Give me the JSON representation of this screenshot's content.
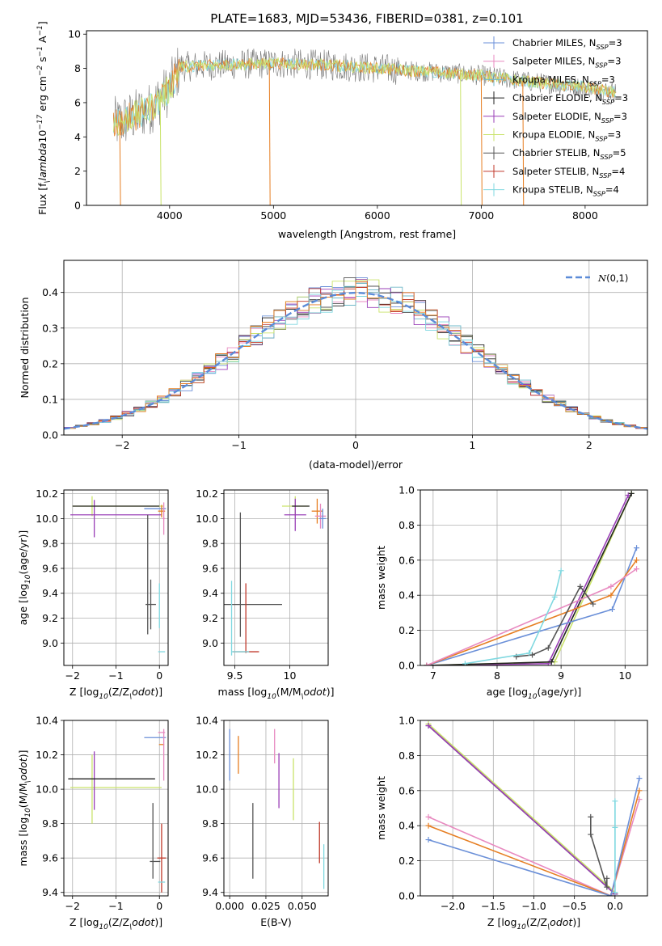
{
  "colors": {
    "Chabrier MILES": "#6a8fd8",
    "Salpeter MILES": "#e88ac0",
    "Kroupa MILES": "#6fb8c8",
    "Chabrier ELODIE": "#222222",
    "Salpeter ELODIE": "#9a3fb7",
    "Kroupa ELODIE": "#c9e36a",
    "Chabrier STELIB": "#555555",
    "Salpeter STELIB": "#c0392b",
    "Kroupa STELIB": "#7fd8e0",
    "orange": "#e67e22",
    "normal": "#5b8bd8"
  },
  "chart_data": [
    {
      "type": "line",
      "title": "PLATE=1683, MJD=53436, FIBERID=0381, z=0.101",
      "xlabel": "wavelength [Angstrom, rest frame]",
      "ylabel": "Flux [f$_\\lambda$10$^{-17}$ erg cm$^{-2}$ s$^{-1}$ A$^{-1}$]",
      "xlim": [
        3200,
        8600
      ],
      "ylim": [
        0,
        10.2
      ],
      "xticks": [
        4000,
        5000,
        6000,
        7000,
        8000
      ],
      "yticks": [
        0,
        2,
        4,
        6,
        8,
        10
      ],
      "legend_position": "upper-right",
      "legend": [
        {
          "name": "Chabrier MILES",
          "nssp": "3"
        },
        {
          "name": "Salpeter MILES",
          "nssp": "3"
        },
        {
          "name": "Kroupa MILES",
          "nssp": "3"
        },
        {
          "name": "Chabrier ELODIE",
          "nssp": "3"
        },
        {
          "name": "Salpeter ELODIE",
          "nssp": "3"
        },
        {
          "name": "Kroupa ELODIE",
          "nssp": "3"
        },
        {
          "name": "Chabrier STELIB",
          "nssp": "5"
        },
        {
          "name": "Salpeter STELIB",
          "nssp": "4"
        },
        {
          "name": "Kroupa STELIB",
          "nssp": "4"
        }
      ],
      "continuum": {
        "x": [
          3500,
          3800,
          4000,
          4100,
          4500,
          5000,
          5500,
          6000,
          6500,
          7000,
          7500,
          8000,
          8300
        ],
        "y": [
          4.8,
          5.6,
          6.8,
          8.1,
          8.2,
          8.3,
          8.2,
          8.0,
          7.8,
          7.6,
          7.2,
          6.9,
          6.6
        ]
      }
    },
    {
      "type": "step",
      "xlabel": "(data-model)/error",
      "ylabel": "Normed distribution",
      "xlim": [
        -2.5,
        2.5
      ],
      "ylim": [
        0,
        0.49
      ],
      "xticks": [
        -2,
        -1,
        0,
        1,
        2
      ],
      "yticks": [
        0.0,
        0.1,
        0.2,
        0.3,
        0.4
      ],
      "legend_label": "$\\mathcal{N}(0,1)$",
      "grid": true
    },
    {
      "type": "errorbar",
      "xlabel": "Z [log$_{10}$(Z/Z$_\\odot$)]",
      "ylabel": "age  [log$_{10}$(age/yr)]",
      "xlim": [
        -2.2,
        0.2
      ],
      "ylim": [
        8.82,
        10.23
      ],
      "xticks": [
        -2,
        -1,
        0
      ],
      "yticks": [
        9.0,
        9.2,
        9.4,
        9.6,
        9.8,
        10.0,
        10.2
      ],
      "points": [
        {
          "c": "Kroupa ELODIE",
          "x": -0.95,
          "y": 10.1,
          "xerr": 1.05,
          "yerr": 0.0
        },
        {
          "c": "Kroupa ELODIE",
          "x": -1.55,
          "y": 10.1,
          "xerr": 0.0,
          "yerr": 0.08
        },
        {
          "c": "Salpeter ELODIE",
          "x": -1.0,
          "y": 10.03,
          "xerr": 1.05,
          "yerr": 0.0
        },
        {
          "c": "Salpeter ELODIE",
          "x": -1.5,
          "y": 10.0,
          "xerr": 0.0,
          "yerr": 0.15
        },
        {
          "c": "Chabrier ELODIE",
          "x": -1.0,
          "y": 10.1,
          "xerr": 1.0,
          "yerr": 0.0
        },
        {
          "c": "Chabrier MILES",
          "x": -0.1,
          "y": 10.08,
          "xerr": 0.25,
          "yerr": 0.0
        },
        {
          "c": "orange",
          "x": 0.05,
          "y": 10.06,
          "xerr": 0.08,
          "yerr": 0.05
        },
        {
          "c": "Salpeter MILES",
          "x": 0.1,
          "y": 10.0,
          "xerr": 0.03,
          "yerr": 0.13
        },
        {
          "c": "Chabrier STELIB",
          "x": -0.2,
          "y": 9.31,
          "xerr": 0.12,
          "yerr": 0.2
        },
        {
          "c": "Chabrier STELIB",
          "x": -0.27,
          "y": 9.55,
          "xerr": 0.0,
          "yerr": 0.48
        },
        {
          "c": "Kroupa STELIB",
          "x": 0.0,
          "y": 9.3,
          "xerr": 0.0,
          "yerr": 0.18
        },
        {
          "c": "Kroupa STELIB",
          "x": 0.05,
          "y": 8.93,
          "xerr": 0.08,
          "yerr": 0.0
        }
      ]
    },
    {
      "type": "errorbar",
      "xlabel": "mass [log$_{10}$(M/M$_\\odot$)]",
      "xlim": [
        9.4,
        10.35
      ],
      "ylim": [
        8.82,
        10.23
      ],
      "xticks": [
        9.5,
        10.0
      ],
      "yticks": [
        9.0,
        9.2,
        9.4,
        9.6,
        9.8,
        10.0,
        10.2
      ],
      "points": [
        {
          "c": "Kroupa ELODIE",
          "x": 10.05,
          "y": 10.1,
          "xerr": 0.12,
          "yerr": 0.08
        },
        {
          "c": "Salpeter ELODIE",
          "x": 10.05,
          "y": 10.03,
          "xerr": 0.1,
          "yerr": 0.13
        },
        {
          "c": "Chabrier ELODIE",
          "x": 10.1,
          "y": 10.1,
          "xerr": 0.08,
          "yerr": 0.0
        },
        {
          "c": "orange",
          "x": 10.25,
          "y": 10.06,
          "xerr": 0.05,
          "yerr": 0.1
        },
        {
          "c": "Salpeter MILES",
          "x": 10.28,
          "y": 10.02,
          "xerr": 0.05,
          "yerr": 0.1
        },
        {
          "c": "Chabrier MILES",
          "x": 10.3,
          "y": 10.0,
          "xerr": 0.03,
          "yerr": 0.08
        },
        {
          "c": "Chabrier STELIB",
          "x": 9.58,
          "y": 9.31,
          "xerr": 0.35,
          "yerr": 0.0
        },
        {
          "c": "Chabrier STELIB",
          "x": 9.55,
          "y": 9.55,
          "xerr": 0.0,
          "yerr": 0.5
        },
        {
          "c": "Salpeter STELIB",
          "x": 9.6,
          "y": 9.2,
          "xerr": 0.0,
          "yerr": 0.28
        },
        {
          "c": "Salpeter STELIB",
          "x": 9.6,
          "y": 8.93,
          "xerr": 0.12,
          "yerr": 0.0
        },
        {
          "c": "Kroupa STELIB",
          "x": 9.47,
          "y": 9.2,
          "xerr": 0.0,
          "yerr": 0.3
        },
        {
          "c": "Kroupa STELIB",
          "x": 9.55,
          "y": 8.93,
          "xerr": 0.08,
          "yerr": 0.0
        }
      ]
    },
    {
      "type": "line",
      "xlabel": "age  [log$_{10}$(age/yr)]",
      "ylabel": "mass weight",
      "xlim": [
        6.8,
        10.35
      ],
      "ylim": [
        0,
        1.0
      ],
      "xticks": [
        7,
        8,
        9,
        10
      ],
      "yticks": [
        0.0,
        0.2,
        0.4,
        0.6,
        0.8,
        1.0
      ],
      "series": [
        {
          "c": "Salpeter ELODIE",
          "x": [
            6.9,
            8.8,
            10.05
          ],
          "y": [
            0.0,
            0.01,
            0.97
          ]
        },
        {
          "c": "Kroupa ELODIE",
          "x": [
            6.9,
            8.9,
            10.1
          ],
          "y": [
            0.0,
            0.02,
            0.98
          ]
        },
        {
          "c": "Chabrier ELODIE",
          "x": [
            6.9,
            8.85,
            10.1
          ],
          "y": [
            0.0,
            0.02,
            0.98
          ]
        },
        {
          "c": "Chabrier MILES",
          "x": [
            6.9,
            9.8,
            10.18
          ],
          "y": [
            0.0,
            0.32,
            0.67
          ]
        },
        {
          "c": "orange",
          "x": [
            6.9,
            9.78,
            10.18
          ],
          "y": [
            0.0,
            0.4,
            0.6
          ]
        },
        {
          "c": "Salpeter MILES",
          "x": [
            6.9,
            9.78,
            10.18
          ],
          "y": [
            0.0,
            0.45,
            0.55
          ]
        },
        {
          "c": "Chabrier STELIB",
          "x": [
            8.3,
            8.55,
            8.8,
            9.3,
            9.5
          ],
          "y": [
            0.05,
            0.06,
            0.1,
            0.45,
            0.35
          ]
        },
        {
          "c": "Kroupa STELIB",
          "x": [
            7.5,
            8.5,
            8.9,
            9.0
          ],
          "y": [
            0.01,
            0.07,
            0.39,
            0.54
          ]
        }
      ]
    },
    {
      "type": "errorbar",
      "xlabel": "Z [log$_{10}$(Z/Z$_\\odot$)]",
      "ylabel": "mass [log$_{10}$(M/M$_\\odot$)]",
      "xlim": [
        -2.2,
        0.2
      ],
      "ylim": [
        9.38,
        10.4
      ],
      "xticks": [
        -2,
        -1,
        0
      ],
      "yticks": [
        9.4,
        9.6,
        9.8,
        10.0,
        10.2,
        10.4
      ],
      "points": [
        {
          "c": "Kroupa ELODIE",
          "x": -1.0,
          "y": 10.01,
          "xerr": 1.05,
          "yerr": 0.0
        },
        {
          "c": "Kroupa ELODIE",
          "x": -1.55,
          "y": 10.0,
          "xerr": 0.0,
          "yerr": 0.2
        },
        {
          "c": "Salpeter ELODIE",
          "x": -1.5,
          "y": 10.05,
          "xerr": 0.0,
          "yerr": 0.17
        },
        {
          "c": "Chabrier ELODIE",
          "x": -1.1,
          "y": 10.06,
          "xerr": 1.0,
          "yerr": 0.0
        },
        {
          "c": "Chabrier MILES",
          "x": -0.1,
          "y": 10.3,
          "xerr": 0.25,
          "yerr": 0.0
        },
        {
          "c": "Salpeter MILES",
          "x": 0.05,
          "y": 10.33,
          "xerr": 0.08,
          "yerr": 0.0
        },
        {
          "c": "orange",
          "x": 0.05,
          "y": 10.26,
          "xerr": 0.06,
          "yerr": 0.0
        },
        {
          "c": "Salpeter MILES",
          "x": 0.1,
          "y": 10.2,
          "xerr": 0.0,
          "yerr": 0.15
        },
        {
          "c": "Chabrier STELIB",
          "x": -0.1,
          "y": 9.58,
          "xerr": 0.12,
          "yerr": 0.0
        },
        {
          "c": "Chabrier STELIB",
          "x": -0.15,
          "y": 9.7,
          "xerr": 0.0,
          "yerr": 0.22
        },
        {
          "c": "Salpeter STELIB",
          "x": 0.05,
          "y": 9.6,
          "xerr": 0.1,
          "yerr": 0.2
        },
        {
          "c": "Kroupa STELIB",
          "x": 0.05,
          "y": 9.46,
          "xerr": 0.08,
          "yerr": 0.0
        }
      ]
    },
    {
      "type": "errorbar",
      "xlabel": "E(B-V)",
      "xlim": [
        -0.004,
        0.068
      ],
      "ylim": [
        9.38,
        10.4
      ],
      "xticks": [
        0.0,
        0.025,
        0.05
      ],
      "xticklabels": [
        "0.000",
        "0.025",
        "0.050"
      ],
      "yticks": [
        9.4,
        9.6,
        9.8,
        10.0,
        10.2,
        10.4
      ],
      "points": [
        {
          "c": "Chabrier MILES",
          "x": 0.0,
          "y": 10.2,
          "xerr": 0.0,
          "yerr": 0.15
        },
        {
          "c": "orange",
          "x": 0.006,
          "y": 10.2,
          "xerr": 0.0,
          "yerr": 0.11
        },
        {
          "c": "Chabrier STELIB",
          "x": 0.016,
          "y": 9.7,
          "xerr": 0.0,
          "yerr": 0.22
        },
        {
          "c": "Salpeter MILES",
          "x": 0.031,
          "y": 10.25,
          "xerr": 0.0,
          "yerr": 0.1
        },
        {
          "c": "Salpeter ELODIE",
          "x": 0.034,
          "y": 10.05,
          "xerr": 0.0,
          "yerr": 0.16
        },
        {
          "c": "Kroupa ELODIE",
          "x": 0.044,
          "y": 10.0,
          "xerr": 0.0,
          "yerr": 0.18
        },
        {
          "c": "Salpeter STELIB",
          "x": 0.062,
          "y": 9.69,
          "xerr": 0.0,
          "yerr": 0.12
        },
        {
          "c": "Kroupa STELIB",
          "x": 0.065,
          "y": 9.55,
          "xerr": 0.0,
          "yerr": 0.13
        }
      ]
    },
    {
      "type": "line",
      "xlabel": "Z [log$_{10}$(Z/Z$_\\odot$)]",
      "ylabel": "mass weight",
      "xlim": [
        -2.4,
        0.4
      ],
      "ylim": [
        0,
        1.0
      ],
      "xticks": [
        -2.0,
        -1.5,
        -1.0,
        -0.5,
        0.0
      ],
      "xticklabels": [
        "−2.0",
        "−1.5",
        "−1.0",
        "−0.5",
        "0.0"
      ],
      "yticks": [
        0.0,
        0.2,
        0.4,
        0.6,
        0.8,
        1.0
      ],
      "series": [
        {
          "c": "Chabrier ELODIE",
          "x": [
            -2.3,
            0.0
          ],
          "y": [
            0.97,
            0.01
          ]
        },
        {
          "c": "Kroupa ELODIE",
          "x": [
            -2.3,
            0.0
          ],
          "y": [
            0.98,
            0.02
          ]
        },
        {
          "c": "Salpeter ELODIE",
          "x": [
            -2.3,
            0.0
          ],
          "y": [
            0.97,
            0.01
          ]
        },
        {
          "c": "Salpeter MILES",
          "x": [
            -2.3,
            -0.05,
            0.3
          ],
          "y": [
            0.45,
            0.0,
            0.55
          ]
        },
        {
          "c": "orange",
          "x": [
            -2.3,
            -0.05,
            0.3
          ],
          "y": [
            0.4,
            0.0,
            0.6
          ]
        },
        {
          "c": "Chabrier MILES",
          "x": [
            -2.3,
            -0.05,
            0.3
          ],
          "y": [
            0.32,
            0.0,
            0.67
          ]
        },
        {
          "c": "Chabrier STELIB",
          "x": [
            -0.3,
            -0.3,
            -0.1,
            -0.1
          ],
          "y": [
            0.45,
            0.35,
            0.05,
            0.1
          ]
        },
        {
          "c": "Kroupa STELIB",
          "x": [
            0.0,
            0.0,
            0.0
          ],
          "y": [
            0.54,
            0.39,
            0.02
          ]
        }
      ]
    }
  ]
}
